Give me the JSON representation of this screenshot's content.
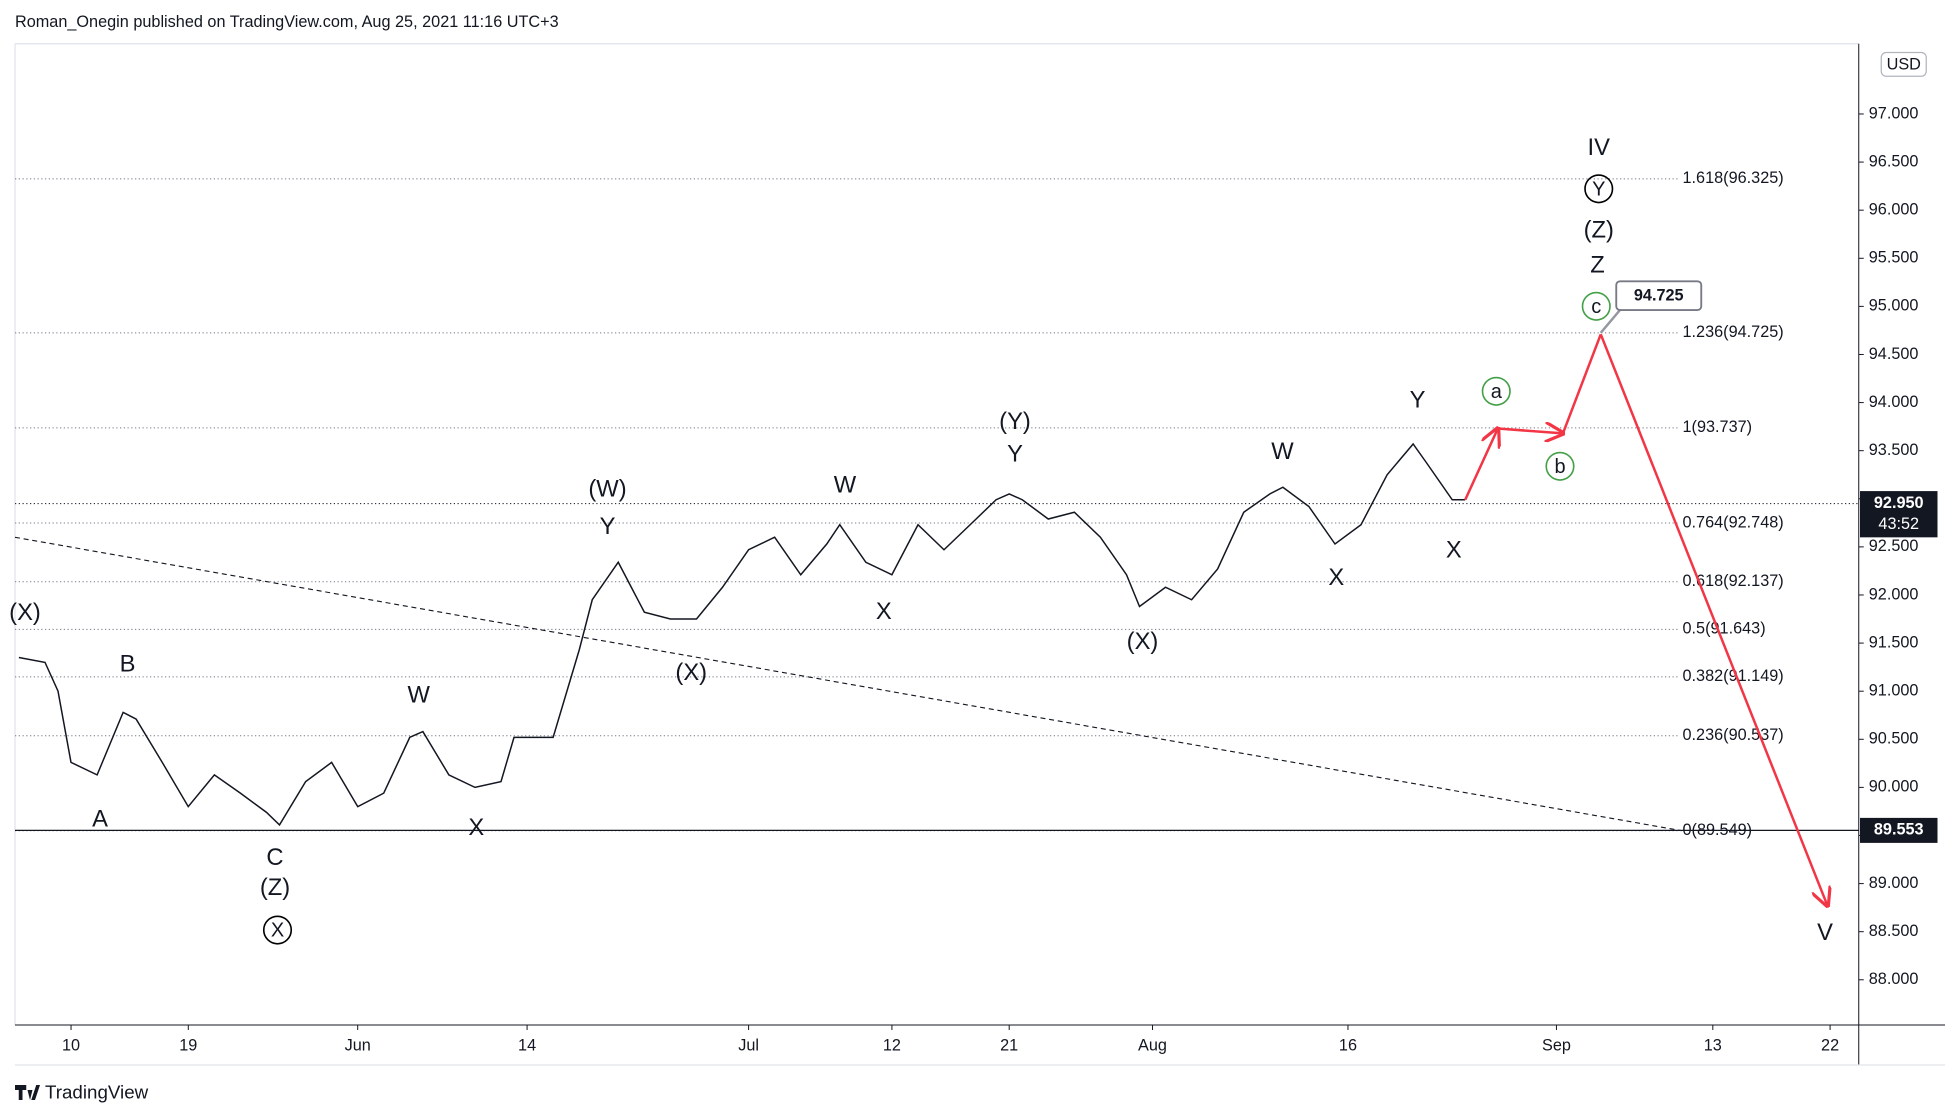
{
  "header": "Roman_Onegin published on TradingView.com, Aug 25, 2021 11:16 UTC+3",
  "footer": "TradingView",
  "chart_data": {
    "type": "line",
    "color": "#131722",
    "x": [
      -4,
      -2,
      -1,
      0,
      2,
      4,
      5,
      7,
      9,
      11,
      13,
      15,
      16,
      18,
      20,
      22,
      24,
      26,
      27,
      29,
      31,
      33,
      34,
      37,
      39,
      40,
      42,
      44,
      46,
      48,
      50,
      52,
      54,
      56,
      58,
      59,
      61,
      63,
      65,
      67,
      69,
      71,
      72,
      73,
      75,
      77,
      79,
      81,
      82,
      84,
      86,
      88,
      90,
      92,
      93,
      95,
      97,
      99,
      101,
      103,
      104,
      106,
      107
    ],
    "values": [
      91.35,
      91.3,
      91.0,
      90.26,
      90.13,
      90.78,
      90.71,
      90.26,
      89.8,
      90.13,
      89.94,
      89.74,
      89.61,
      90.06,
      90.26,
      89.8,
      89.94,
      90.52,
      90.58,
      90.13,
      90.0,
      90.06,
      90.52,
      90.52,
      91.43,
      91.95,
      92.34,
      91.82,
      91.75,
      91.75,
      92.08,
      92.47,
      92.6,
      92.21,
      92.53,
      92.73,
      92.34,
      92.21,
      92.73,
      92.47,
      92.73,
      92.99,
      93.05,
      92.99,
      92.79,
      92.86,
      92.6,
      92.21,
      91.88,
      92.08,
      91.95,
      92.27,
      92.86,
      93.05,
      93.12,
      92.92,
      92.53,
      92.73,
      93.25,
      93.57,
      93.38,
      92.99,
      92.99
    ],
    "xlim": [
      -4.3,
      137.2
    ],
    "xticks": [
      {
        "value": 0,
        "label": "10"
      },
      {
        "value": 9,
        "label": "19"
      },
      {
        "value": 22,
        "label": "Jun"
      },
      {
        "value": 35,
        "label": "14"
      },
      {
        "value": 52,
        "label": "Jul"
      },
      {
        "value": 63,
        "label": "12"
      },
      {
        "value": 72,
        "label": "21"
      },
      {
        "value": 83,
        "label": "Aug"
      },
      {
        "value": 98,
        "label": "16"
      },
      {
        "value": 114,
        "label": "Sep"
      },
      {
        "value": 126,
        "label": "13"
      },
      {
        "value": 135,
        "label": "22"
      }
    ],
    "ylim": [
      87.53,
      97.73
    ],
    "yticks": [
      {
        "value": 88,
        "label": "88.000"
      },
      {
        "value": 88.5,
        "label": "88.500"
      },
      {
        "value": 89,
        "label": "89.000"
      },
      {
        "value": 89.5,
        "label": "89.500"
      },
      {
        "value": 90,
        "label": "90.000"
      },
      {
        "value": 90.5,
        "label": "90.500"
      },
      {
        "value": 91,
        "label": "91.000"
      },
      {
        "value": 91.5,
        "label": "91.500"
      },
      {
        "value": 92,
        "label": "92.000"
      },
      {
        "value": 92.5,
        "label": "92.500"
      },
      {
        "value": 93,
        "label": "93.000"
      },
      {
        "value": 93.5,
        "label": "93.500"
      },
      {
        "value": 94,
        "label": "94.000"
      },
      {
        "value": 94.5,
        "label": "94.500"
      },
      {
        "value": 95,
        "label": "95.000"
      },
      {
        "value": 95.5,
        "label": "95.500"
      },
      {
        "value": 96,
        "label": "96.000"
      },
      {
        "value": 96.5,
        "label": "96.500"
      },
      {
        "value": 97,
        "label": "97.000"
      }
    ],
    "currency": "USD",
    "price_label": {
      "value": 92.95,
      "label": "92.950"
    },
    "countdown": "43:52",
    "low_label": {
      "value": 89.553,
      "label": "89.553"
    },
    "target_label": {
      "value": 94.725,
      "label": "94.725"
    },
    "fib_levels": [
      {
        "value": 96.325,
        "label": "1.618(96.325)"
      },
      {
        "value": 94.725,
        "label": "1.236(94.725)"
      },
      {
        "value": 93.737,
        "label": "1(93.737)"
      },
      {
        "value": 92.748,
        "label": "0.764(92.748)"
      },
      {
        "value": 92.137,
        "label": "0.618(92.137)"
      },
      {
        "value": 91.643,
        "label": "0.5(91.643)"
      },
      {
        "value": 91.149,
        "label": "0.382(91.149)"
      },
      {
        "value": 90.537,
        "label": "0.236(90.537)"
      },
      {
        "value": 89.549,
        "label": "0(89.549)"
      }
    ],
    "projection": {
      "color": "#f23645",
      "x": [
        107,
        109.5,
        114.5,
        117.4,
        134.8
      ],
      "values": [
        92.99,
        93.73,
        93.68,
        94.71,
        88.77
      ]
    },
    "trendline": {
      "color": "#131722",
      "x": [
        -4.3,
        123.6
      ],
      "values": [
        92.6,
        89.55
      ]
    },
    "annotations": [
      {
        "text": "(X)",
        "color": "#f23645"
      },
      {
        "text": "B",
        "color": "#00a6c0"
      },
      {
        "text": "A",
        "color": "#00a6c0"
      },
      {
        "text": "C",
        "color": "#00a6c0"
      },
      {
        "text": "(Z)",
        "color": "#f23645"
      },
      {
        "text": "X",
        "color": "#000000",
        "circled": true
      },
      {
        "text": "W",
        "color": "#00a6c0"
      },
      {
        "text": "X",
        "color": "#00a6c0"
      },
      {
        "text": "(W)",
        "color": "#f23645"
      },
      {
        "text": "Y",
        "color": "#00a6c0"
      },
      {
        "text": "(X)",
        "color": "#f23645"
      },
      {
        "text": "W",
        "color": "#00a6c0"
      },
      {
        "text": "X",
        "color": "#00a6c0"
      },
      {
        "text": "(Y)",
        "color": "#f23645"
      },
      {
        "text": "Y",
        "color": "#00a6c0"
      },
      {
        "text": "(X)",
        "color": "#f23645"
      },
      {
        "text": "W",
        "color": "#00a6c0"
      },
      {
        "text": "X",
        "color": "#00a6c0"
      },
      {
        "text": "Y",
        "color": "#00a6c0"
      },
      {
        "text": "X",
        "color": "#00a6c0"
      },
      {
        "text": "a",
        "color": "#43a047",
        "circled": true
      },
      {
        "text": "b",
        "color": "#43a047",
        "circled": true
      },
      {
        "text": "c",
        "color": "#43a047",
        "circled": true
      },
      {
        "text": "Z",
        "color": "#00a6c0"
      },
      {
        "text": "(Z)",
        "color": "#f23645"
      },
      {
        "text": "Y",
        "color": "#000000",
        "circled": true
      },
      {
        "text": "IV",
        "color": "#f59a9a"
      },
      {
        "text": "V",
        "color": "#f59a9a"
      }
    ]
  }
}
